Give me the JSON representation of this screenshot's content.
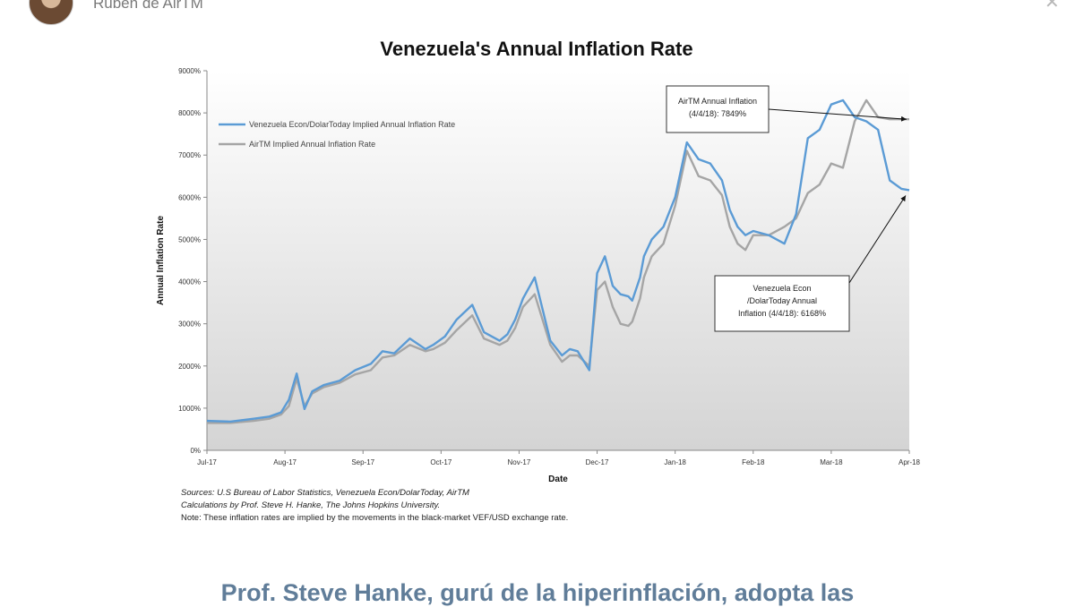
{
  "author": {
    "name": "Rubén de AirTM"
  },
  "headline": "Prof. Steve Hanke, gurú de la hiperinflación, adopta las",
  "colors": {
    "blue": "#5b9bd5",
    "gray": "#a5a5a5",
    "headline": "#607d99"
  },
  "chart_data": {
    "type": "line",
    "title": "Venezuela's Annual Inflation Rate",
    "xlabel": "Date",
    "ylabel": "Annual Inflation Rate",
    "ylim": [
      0,
      9000
    ],
    "yticks": [
      "0%",
      "1000%",
      "2000%",
      "3000%",
      "4000%",
      "5000%",
      "6000%",
      "7000%",
      "8000%",
      "9000%"
    ],
    "xticks": [
      "Jul-17",
      "Aug-17",
      "Sep-17",
      "Oct-17",
      "Nov-17",
      "Dec-17",
      "Jan-18",
      "Feb-18",
      "Mar-18",
      "Apr-18"
    ],
    "legend_position": "top-left",
    "series": [
      {
        "name": "Venezuela Econ/DolarToday Implied Annual Inflation Rate",
        "color": "#5b9bd5",
        "x": [
          0,
          0.3,
          0.6,
          0.8,
          0.95,
          1.05,
          1.15,
          1.25,
          1.35,
          1.5,
          1.7,
          1.9,
          2.1,
          2.25,
          2.4,
          2.6,
          2.8,
          2.9,
          3.05,
          3.2,
          3.4,
          3.55,
          3.75,
          3.85,
          3.95,
          4.05,
          4.2,
          4.4,
          4.55,
          4.65,
          4.75,
          4.9,
          5.0,
          5.1,
          5.2,
          5.3,
          5.4,
          5.45,
          5.55,
          5.6,
          5.7,
          5.85,
          6.0,
          6.15,
          6.3,
          6.45,
          6.6,
          6.7,
          6.8,
          6.9,
          7.0,
          7.2,
          7.4,
          7.55,
          7.7,
          7.85,
          8.0,
          8.15,
          8.3,
          8.45,
          8.6,
          8.75,
          8.9,
          9.0
        ],
        "values": [
          700,
          680,
          750,
          800,
          900,
          1200,
          1820,
          980,
          1400,
          1550,
          1650,
          1900,
          2050,
          2350,
          2300,
          2650,
          2400,
          2500,
          2700,
          3100,
          3450,
          2800,
          2600,
          2750,
          3100,
          3600,
          4100,
          2600,
          2250,
          2400,
          2350,
          1900,
          4200,
          4600,
          3900,
          3700,
          3650,
          3550,
          4100,
          4600,
          5000,
          5300,
          6000,
          7300,
          6900,
          6800,
          6400,
          5700,
          5300,
          5100,
          5200,
          5100,
          4900,
          5600,
          7400,
          7600,
          8200,
          8300,
          7900,
          7800,
          7600,
          6400,
          6200,
          6168
        ]
      },
      {
        "name": "AirTM Implied Annual Inflation Rate",
        "color": "#a5a5a5",
        "x": [
          0,
          0.3,
          0.6,
          0.8,
          0.95,
          1.05,
          1.15,
          1.25,
          1.35,
          1.5,
          1.7,
          1.9,
          2.1,
          2.25,
          2.4,
          2.6,
          2.8,
          2.9,
          3.05,
          3.2,
          3.4,
          3.55,
          3.75,
          3.85,
          3.95,
          4.05,
          4.2,
          4.4,
          4.55,
          4.65,
          4.75,
          4.9,
          5.0,
          5.1,
          5.2,
          5.3,
          5.4,
          5.45,
          5.55,
          5.6,
          5.7,
          5.85,
          6.0,
          6.15,
          6.3,
          6.45,
          6.6,
          6.7,
          6.8,
          6.9,
          7.0,
          7.2,
          7.4,
          7.55,
          7.7,
          7.85,
          8.0,
          8.15,
          8.3,
          8.45,
          8.6,
          8.75,
          8.9,
          9.0
        ],
        "values": [
          650,
          650,
          700,
          750,
          850,
          1050,
          1700,
          1050,
          1350,
          1500,
          1600,
          1800,
          1900,
          2200,
          2250,
          2500,
          2350,
          2400,
          2550,
          2850,
          3200,
          2650,
          2500,
          2600,
          2900,
          3400,
          3700,
          2500,
          2100,
          2250,
          2250,
          2000,
          3800,
          4000,
          3400,
          3000,
          2950,
          3050,
          3600,
          4100,
          4600,
          4900,
          5800,
          7100,
          6500,
          6400,
          6050,
          5300,
          4900,
          4750,
          5100,
          5100,
          5300,
          5500,
          6100,
          6300,
          6800,
          6700,
          7800,
          8300,
          7900,
          7849,
          7849,
          7849
        ]
      }
    ],
    "annotations": [
      {
        "text_lines": [
          "AirTM Annual Inflation",
          "(4/4/18): 7849%"
        ],
        "target_value": 7849
      },
      {
        "text_lines": [
          "Venezuela Econ",
          "/DolarToday Annual",
          "Inflation (4/4/18): 6168%"
        ],
        "target_value": 6168
      }
    ],
    "sources": {
      "line1": "Sources: U.S Bureau of Labor Statistics, Venezuela Econ/DolarToday, AirTM",
      "line2": "Calculations by Prof. Steve H. Hanke, The Johns Hopkins University.",
      "note": "Note: These inflation rates are implied by the movements in the black-market VEF/USD exchange rate."
    }
  }
}
